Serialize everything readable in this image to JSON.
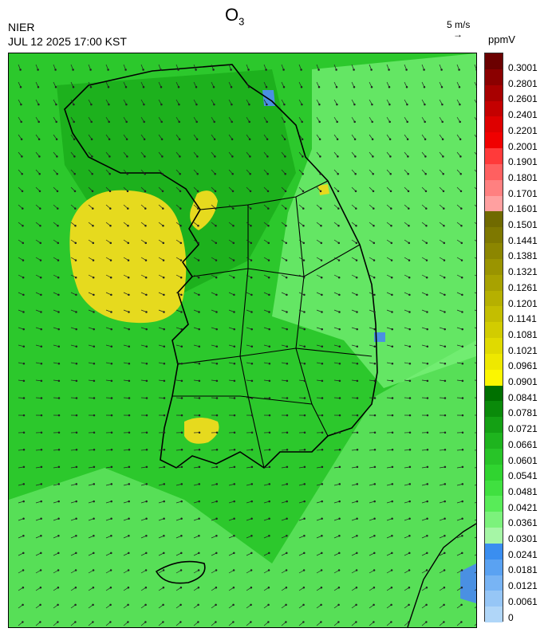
{
  "header": {
    "title_main": "O",
    "title_sub": "3",
    "agency": "NIER",
    "datetime": "JUL 12 2025 17:00 KST",
    "wind_ref_label": "5 m/s",
    "wind_ref_arrow": "→",
    "unit": "ppmV"
  },
  "legend": {
    "labels": [
      "0.3001",
      "0.2801",
      "0.2601",
      "0.2401",
      "0.2201",
      "0.2001",
      "0.1901",
      "0.1801",
      "0.1701",
      "0.1601",
      "0.1501",
      "0.1441",
      "0.1381",
      "0.1321",
      "0.1261",
      "0.1201",
      "0.1141",
      "0.1081",
      "0.1021",
      "0.0961",
      "0.0901",
      "0.0841",
      "0.0781",
      "0.0721",
      "0.0661",
      "0.0601",
      "0.0541",
      "0.0481",
      "0.0421",
      "0.0361",
      "0.0301",
      "0.0241",
      "0.0181",
      "0.0121",
      "0.0061",
      "0"
    ],
    "colors": [
      "#6b0000",
      "#8b0000",
      "#a80000",
      "#c40000",
      "#de0000",
      "#f00000",
      "#ff3a3a",
      "#ff6060",
      "#ff8080",
      "#ffa0a0",
      "#706a00",
      "#7e7800",
      "#8c8600",
      "#9a9400",
      "#a8a200",
      "#b6b000",
      "#c4be00",
      "#d2cc00",
      "#e0da00",
      "#eee800",
      "#fcf600",
      "#007000",
      "#0a8a0a",
      "#14a014",
      "#1eb41e",
      "#28c428",
      "#30d430",
      "#40e040",
      "#58ec58",
      "#7cf27c",
      "#a6f6a6",
      "#3a8ef0",
      "#5aa2f2",
      "#78b4f4",
      "#96c6f6",
      "#b0d6f8"
    ]
  },
  "map": {
    "background_color": "#2cc82c",
    "high_zone_color": "#e6da1e",
    "low_zone_color": "#7cf27c",
    "very_low_zone_color": "#4a90e2"
  }
}
